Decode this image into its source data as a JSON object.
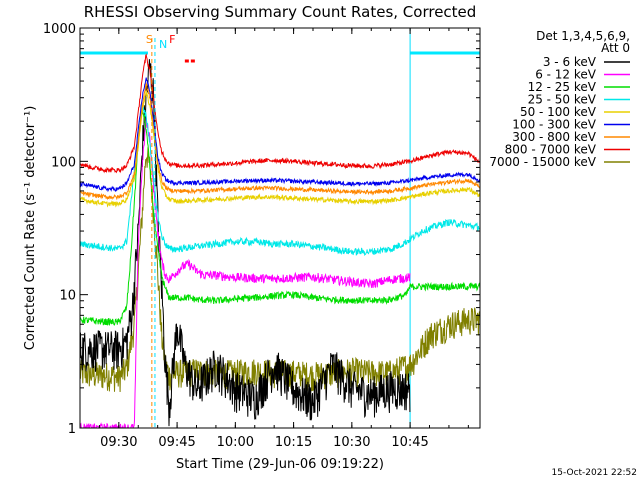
{
  "chart_data": {
    "type": "line",
    "title": "RHESSI Observing Summary Count Rates, Corrected",
    "xlabel": "Start Time (29-Jun-06 09:19:22)",
    "ylabel": "Corrected Count Rate (s⁻¹ detector⁻¹)",
    "yscale": "log",
    "ylim": [
      1,
      1000
    ],
    "xlim_minutes_after_09_20": [
      0,
      103
    ],
    "x_ticks": [
      {
        "label": "09:30",
        "t": 10
      },
      {
        "label": "09:45",
        "t": 25
      },
      {
        "label": "10:00",
        "t": 40
      },
      {
        "label": "10:15",
        "t": 55
      },
      {
        "label": "10:30",
        "t": 70
      },
      {
        "label": "10:45",
        "t": 85
      }
    ],
    "y_ticks": [
      {
        "label": "1",
        "v": 1
      },
      {
        "label": "10",
        "v": 10
      },
      {
        "label": "100",
        "v": 100
      },
      {
        "label": "1000",
        "v": 1000
      }
    ],
    "legend_header": [
      "Det 1,3,4,5,6,9,",
      "Att 0"
    ],
    "legend_position": "right",
    "markers": [
      {
        "label": "S",
        "t": 18.5,
        "color": "#ff8800"
      },
      {
        "label": "N",
        "t": 19.3,
        "color": "#00e0ff"
      },
      {
        "label": "F",
        "t": 24.5,
        "color": "#ff0000"
      }
    ],
    "flare_marker_t": [
      27,
      30
    ],
    "night_bars": [
      {
        "t_start": 0,
        "t_end": 17.5,
        "level": 650
      },
      {
        "t_start": 85,
        "t_end": 103,
        "level": 650
      }
    ],
    "vlines_t": [
      0,
      85,
      103
    ],
    "series": [
      {
        "name": "3 - 6 keV",
        "color": "#000000",
        "x": [
          0,
          10,
          12,
          13.5,
          15,
          16,
          17,
          18,
          19,
          20,
          21,
          22,
          23,
          25,
          27,
          30,
          35,
          40,
          45,
          50,
          55,
          60,
          65,
          70,
          75,
          80,
          85
        ],
        "y": [
          4,
          4,
          4.5,
          8,
          30,
          120,
          300,
          520,
          300,
          40,
          12,
          3,
          1.5,
          6,
          3,
          2,
          3,
          2,
          1.7,
          3,
          2,
          1.6,
          3,
          2,
          1.8,
          2,
          2
        ]
      },
      {
        "name": "6 - 12 keV",
        "color": "#ff00ff",
        "x": [
          0,
          14,
          14.5,
          15,
          16,
          17,
          18,
          19,
          20,
          21,
          22,
          23,
          24,
          26,
          28,
          30,
          32,
          35,
          40,
          45,
          50,
          55,
          60,
          65,
          70,
          75,
          80,
          85
        ],
        "y": [
          1,
          1,
          5,
          25,
          90,
          200,
          150,
          60,
          30,
          18,
          14,
          13,
          14,
          16,
          17,
          15,
          14,
          14,
          13.5,
          13.3,
          13.2,
          13.4,
          13.6,
          13,
          12.5,
          12,
          13,
          13.5
        ]
      },
      {
        "name": "12 - 25 keV",
        "color": "#00dd00",
        "x": [
          0,
          5,
          10,
          12,
          13,
          14,
          15,
          16,
          17,
          18,
          19,
          20,
          21,
          22,
          23,
          25,
          28,
          30,
          35,
          40,
          45,
          50,
          55,
          60,
          65,
          70,
          75,
          80,
          84,
          85,
          88,
          95,
          103
        ],
        "y": [
          6.5,
          6.3,
          6.2,
          8,
          18,
          50,
          140,
          250,
          180,
          90,
          40,
          22,
          14,
          11,
          9.5,
          9.5,
          9.5,
          9.2,
          9,
          9.3,
          9.5,
          9.8,
          10,
          9.5,
          9.2,
          9.1,
          9,
          9.2,
          10,
          11.5,
          11.5,
          11.5,
          11.5
        ]
      },
      {
        "name": "25 - 50 keV",
        "color": "#00e8e8",
        "x": [
          0,
          5,
          10,
          12,
          13,
          14,
          15,
          16,
          17,
          18,
          19,
          20,
          21,
          22,
          23,
          25,
          30,
          35,
          40,
          45,
          50,
          55,
          60,
          65,
          70,
          75,
          80,
          83,
          85,
          88,
          92,
          95,
          103
        ],
        "y": [
          24,
          23,
          22,
          25,
          45,
          90,
          170,
          260,
          220,
          140,
          70,
          40,
          28,
          24,
          22,
          22,
          23,
          24,
          25,
          25,
          24,
          24,
          23,
          22,
          21,
          21,
          22,
          24,
          26,
          30,
          33,
          35,
          32
        ]
      },
      {
        "name": "50 - 100 keV",
        "color": "#e8d000",
        "x": [
          0,
          3,
          7,
          10,
          12,
          14,
          15,
          16,
          17,
          18,
          19,
          20,
          21,
          22,
          23,
          25,
          30,
          35,
          40,
          45,
          50,
          55,
          60,
          65,
          70,
          75,
          80,
          85,
          90,
          95,
          100,
          103
        ],
        "y": [
          52,
          50,
          48,
          48,
          52,
          75,
          130,
          240,
          330,
          260,
          160,
          90,
          65,
          56,
          52,
          50,
          51,
          52,
          53,
          54,
          54,
          53,
          52,
          51,
          50,
          50,
          51,
          54,
          58,
          60,
          62,
          55
        ]
      },
      {
        "name": "100 - 300 keV",
        "color": "#0000ee",
        "x": [
          0,
          3,
          7,
          10,
          12,
          14,
          15,
          16,
          17,
          18,
          19,
          20,
          21,
          22,
          23,
          25,
          30,
          35,
          40,
          45,
          50,
          55,
          60,
          65,
          70,
          75,
          80,
          85,
          90,
          95,
          100,
          103
        ],
        "y": [
          68,
          65,
          62,
          62,
          68,
          95,
          170,
          300,
          420,
          340,
          200,
          110,
          82,
          74,
          70,
          69,
          69,
          70,
          71,
          72,
          72,
          71,
          70,
          69,
          68,
          68,
          69,
          72,
          76,
          79,
          80,
          72
        ]
      },
      {
        "name": "300 - 800 keV",
        "color": "#ff8800",
        "x": [
          0,
          3,
          7,
          10,
          12,
          14,
          15,
          16,
          17,
          18,
          19,
          20,
          21,
          22,
          23,
          25,
          30,
          35,
          40,
          45,
          50,
          55,
          60,
          65,
          70,
          75,
          80,
          85,
          90,
          95,
          100,
          103
        ],
        "y": [
          58,
          56,
          54,
          54,
          58,
          80,
          145,
          260,
          380,
          300,
          180,
          100,
          72,
          64,
          61,
          60,
          60,
          61,
          62,
          63,
          63,
          62,
          61,
          60,
          59,
          59,
          60,
          63,
          67,
          70,
          72,
          64
        ]
      },
      {
        "name": "800 - 7000 keV",
        "color": "#ee0000",
        "x": [
          0,
          3,
          7,
          10,
          12,
          14,
          15,
          16,
          17,
          18,
          19,
          20,
          21,
          22,
          23,
          25,
          30,
          35,
          40,
          45,
          50,
          55,
          60,
          65,
          70,
          75,
          80,
          85,
          90,
          95,
          100,
          103
        ],
        "y": [
          96,
          90,
          86,
          86,
          92,
          130,
          230,
          420,
          620,
          480,
          290,
          165,
          120,
          104,
          96,
          93,
          93,
          95,
          97,
          100,
          102,
          100,
          97,
          95,
          93,
          92,
          95,
          100,
          110,
          118,
          115,
          98
        ]
      },
      {
        "name": "7000 - 15000 keV",
        "color": "#808000",
        "x": [
          0,
          5,
          8,
          10,
          12,
          14,
          15,
          16,
          17,
          18,
          19,
          20,
          21,
          22,
          23,
          25,
          30,
          35,
          40,
          45,
          50,
          55,
          60,
          65,
          70,
          75,
          80,
          85,
          88,
          90,
          95,
          100,
          103
        ],
        "y": [
          2.6,
          2.5,
          2.5,
          2.4,
          2.8,
          6,
          15,
          40,
          120,
          90,
          40,
          15,
          5,
          3,
          2.5,
          2.6,
          2.7,
          2.6,
          2.6,
          2.7,
          2.6,
          2.6,
          2.5,
          2.6,
          2.7,
          2.6,
          2.6,
          3,
          4,
          5,
          6,
          6.5,
          6.5
        ]
      }
    ]
  },
  "footer_timestamp": "15-Oct-2021 22:52"
}
